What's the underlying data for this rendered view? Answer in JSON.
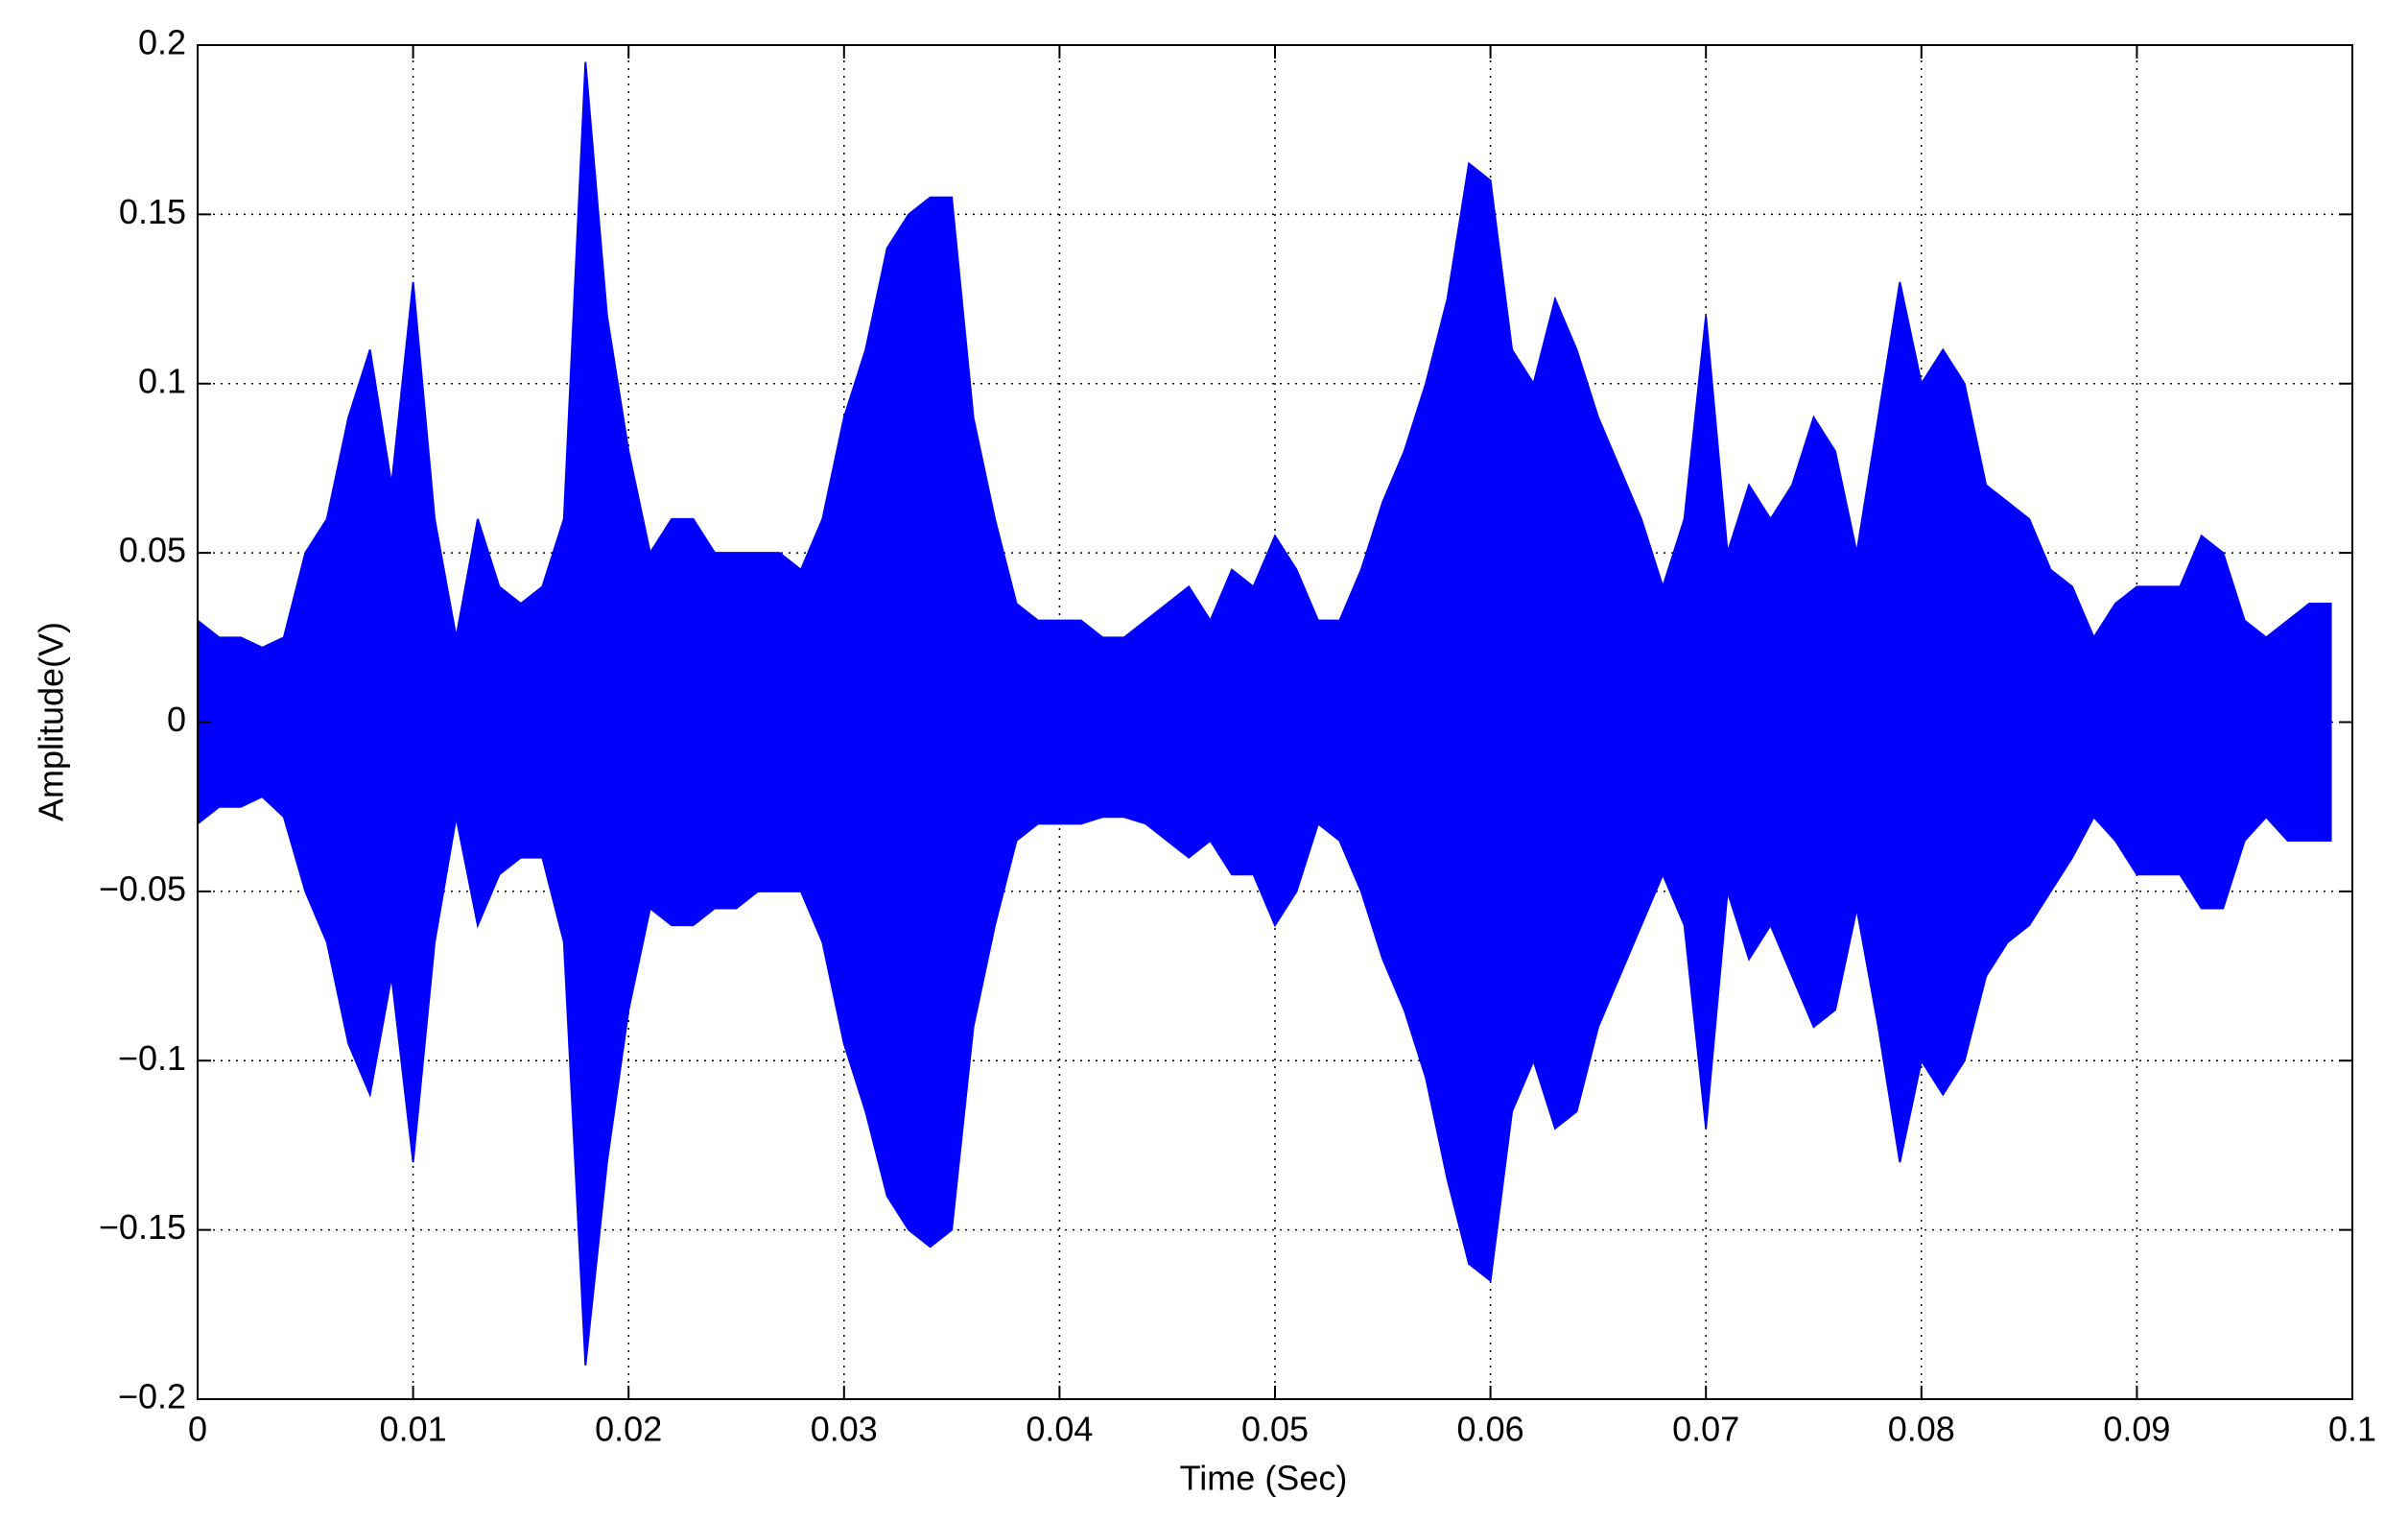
{
  "chart_data": {
    "type": "area",
    "xlabel": "Time (Sec)",
    "ylabel": "Amplitude(V)",
    "x": [
      0,
      0.001,
      0.002,
      0.003,
      0.004,
      0.005,
      0.006,
      0.007,
      0.008,
      0.009,
      0.01,
      0.011,
      0.012,
      0.013,
      0.014,
      0.015,
      0.016,
      0.017,
      0.018,
      0.019,
      0.02,
      0.021,
      0.022,
      0.023,
      0.024,
      0.025,
      0.026,
      0.027,
      0.028,
      0.029,
      0.03,
      0.031,
      0.032,
      0.033,
      0.034,
      0.035,
      0.036,
      0.037,
      0.038,
      0.039,
      0.04,
      0.041,
      0.042,
      0.043,
      0.044,
      0.045,
      0.046,
      0.047,
      0.048,
      0.049,
      0.05,
      0.051,
      0.052,
      0.053,
      0.054,
      0.055,
      0.056,
      0.057,
      0.058,
      0.059,
      0.06,
      0.061,
      0.062,
      0.063,
      0.064,
      0.065,
      0.066,
      0.067,
      0.068,
      0.069,
      0.07,
      0.071,
      0.072,
      0.073,
      0.074,
      0.075,
      0.076,
      0.077,
      0.078,
      0.079,
      0.08,
      0.081,
      0.082,
      0.083,
      0.084,
      0.085,
      0.086,
      0.087,
      0.088,
      0.089,
      0.09,
      0.091,
      0.092,
      0.093,
      0.094,
      0.095,
      0.096,
      0.097,
      0.098,
      0.099
    ],
    "series": [
      {
        "color": "#0000ff",
        "values": [
          0.03,
          0.025,
          0.025,
          0.022,
          0.025,
          0.05,
          0.06,
          0.09,
          0.11,
          0.07,
          0.13,
          0.06,
          0.025,
          0.06,
          0.04,
          0.035,
          0.04,
          0.06,
          0.195,
          0.12,
          0.08,
          0.05,
          0.06,
          0.06,
          0.05,
          0.05,
          0.05,
          0.05,
          0.045,
          0.06,
          0.09,
          0.11,
          0.14,
          0.15,
          0.155,
          0.155,
          0.09,
          0.06,
          0.035,
          0.03,
          0.03,
          0.03,
          0.025,
          0.025,
          0.03,
          0.035,
          0.04,
          0.03,
          0.045,
          0.04,
          0.055,
          0.045,
          0.03,
          0.03,
          0.045,
          0.065,
          0.08,
          0.1,
          0.125,
          0.165,
          0.16,
          0.11,
          0.1,
          0.125,
          0.11,
          0.09,
          0.075,
          0.06,
          0.04,
          0.06,
          0.12,
          0.05,
          0.07,
          0.06,
          0.07,
          0.09,
          0.08,
          0.05,
          0.09,
          0.13,
          0.1,
          0.11,
          0.1,
          0.07,
          0.065,
          0.06,
          0.045,
          0.04,
          0.025,
          0.035,
          0.04,
          0.04,
          0.04,
          0.055,
          0.05,
          0.03,
          0.025,
          0.03,
          0.035,
          0.035
        ]
      },
      {
        "color": "#0000ff",
        "values": [
          -0.03,
          -0.025,
          -0.025,
          -0.022,
          -0.028,
          -0.05,
          -0.065,
          -0.095,
          -0.11,
          -0.075,
          -0.13,
          -0.065,
          -0.028,
          -0.06,
          -0.045,
          -0.04,
          -0.04,
          -0.065,
          -0.19,
          -0.13,
          -0.085,
          -0.055,
          -0.06,
          -0.06,
          -0.055,
          -0.055,
          -0.05,
          -0.05,
          -0.05,
          -0.065,
          -0.095,
          -0.115,
          -0.14,
          -0.15,
          -0.155,
          -0.15,
          -0.09,
          -0.06,
          -0.035,
          -0.03,
          -0.03,
          -0.03,
          -0.028,
          -0.028,
          -0.03,
          -0.035,
          -0.04,
          -0.035,
          -0.045,
          -0.045,
          -0.06,
          -0.05,
          -0.03,
          -0.035,
          -0.05,
          -0.07,
          -0.085,
          -0.105,
          -0.135,
          -0.16,
          -0.165,
          -0.115,
          -0.1,
          -0.12,
          -0.115,
          -0.09,
          -0.075,
          -0.06,
          -0.045,
          -0.06,
          -0.12,
          -0.05,
          -0.07,
          -0.06,
          -0.075,
          -0.09,
          -0.085,
          -0.055,
          -0.09,
          -0.13,
          -0.1,
          -0.11,
          -0.1,
          -0.075,
          -0.065,
          -0.06,
          -0.05,
          -0.04,
          -0.028,
          -0.035,
          -0.045,
          -0.045,
          -0.045,
          -0.055,
          -0.055,
          -0.035,
          -0.028,
          -0.035,
          -0.035,
          -0.035
        ]
      }
    ],
    "xlim": [
      0,
      0.1
    ],
    "xticks": [
      0,
      0.01,
      0.02,
      0.03,
      0.04,
      0.05,
      0.06,
      0.07,
      0.08,
      0.09,
      0.1
    ],
    "ylim": [
      -0.2,
      0.2
    ],
    "yticks": [
      {
        "value": -0.2,
        "label": "−0.2"
      },
      {
        "value": -0.15,
        "label": "−0.15"
      },
      {
        "value": -0.1,
        "label": "−0.1"
      },
      {
        "value": -0.05,
        "label": "−0.05"
      },
      0,
      0.05,
      0.1,
      0.15,
      0.2
    ],
    "grid": true
  }
}
